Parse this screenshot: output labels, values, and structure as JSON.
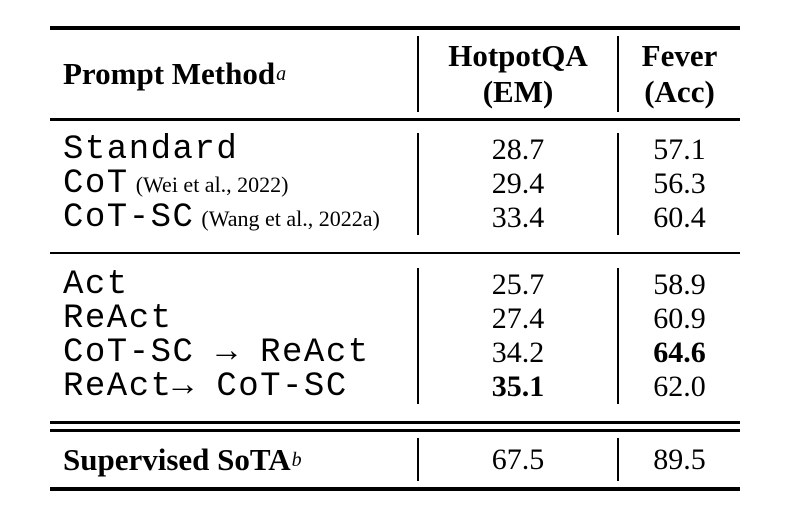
{
  "colors": {
    "text": "#000000",
    "background": "#ffffff",
    "rule": "#000000"
  },
  "table": {
    "header": {
      "method_label": "Prompt Method",
      "method_sup": "a",
      "col2_line1": "HotpotQA",
      "col2_line2": "(EM)",
      "col3_line1": "Fever",
      "col3_line2": "(Acc)"
    },
    "group1": [
      {
        "method": "Standard",
        "citation": "",
        "em": {
          "value": "28.7",
          "bold": false
        },
        "acc": {
          "value": "57.1",
          "bold": false
        }
      },
      {
        "method": "CoT",
        "citation": "(Wei et al., 2022)",
        "em": {
          "value": "29.4",
          "bold": false
        },
        "acc": {
          "value": "56.3",
          "bold": false
        }
      },
      {
        "method": "CoT-SC",
        "citation": "(Wang et al., 2022a)",
        "em": {
          "value": "33.4",
          "bold": false
        },
        "acc": {
          "value": "60.4",
          "bold": false
        }
      }
    ],
    "group2": [
      {
        "method": "Act",
        "citation": "",
        "em": {
          "value": "25.7",
          "bold": false
        },
        "acc": {
          "value": "58.9",
          "bold": false
        }
      },
      {
        "method": "ReAct",
        "citation": "",
        "em": {
          "value": "27.4",
          "bold": false
        },
        "acc": {
          "value": "60.9",
          "bold": false
        }
      },
      {
        "method": "CoT-SC → ReAct",
        "citation": "",
        "em": {
          "value": "34.2",
          "bold": false
        },
        "acc": {
          "value": "64.6",
          "bold": true
        }
      },
      {
        "method": "ReAct→ CoT-SC",
        "citation": "",
        "em": {
          "value": "35.1",
          "bold": true
        },
        "acc": {
          "value": "62.0",
          "bold": false
        }
      }
    ],
    "footer": {
      "label": "Supervised SoTA",
      "sup": "b",
      "em": {
        "value": "67.5",
        "bold": false
      },
      "acc": {
        "value": "89.5",
        "bold": false
      }
    }
  }
}
